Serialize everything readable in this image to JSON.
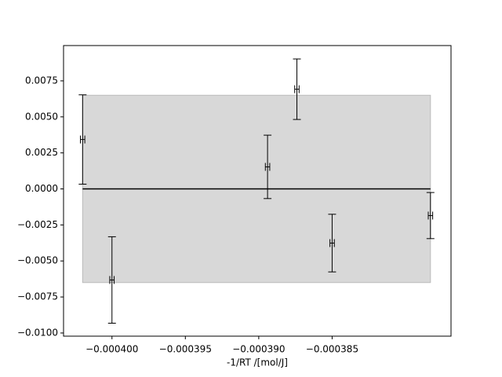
{
  "chart_data": {
    "type": "errorbar",
    "xlabel": "-1/RT /[mol/J]",
    "x": [
      -0.000402,
      -0.0004,
      -0.0003894,
      -0.0003874,
      -0.000385,
      -0.0003783
    ],
    "values": [
      0.00343,
      -0.00632,
      0.00153,
      0.00692,
      -0.00376,
      -0.00185
    ],
    "yerr": [
      0.0031,
      0.003,
      0.0022,
      0.0021,
      0.002,
      0.0016
    ],
    "xerr": [
      1.5e-07,
      1.5e-07,
      1.5e-07,
      1.5e-07,
      1.5e-07,
      1.5e-07
    ],
    "color": "#000000",
    "band": [
      -0.0065,
      0.0065
    ],
    "band_color": "#d8d8d8",
    "xlim": [
      -0.0004033,
      -0.0003769
    ],
    "ylim": [
      -0.01022,
      0.00995
    ],
    "xticks": [
      {
        "value": -0.0004,
        "label": "−0.000400"
      },
      {
        "value": -0.000395,
        "label": "−0.000395"
      },
      {
        "value": -0.00039,
        "label": "−0.000390"
      },
      {
        "value": -0.000385,
        "label": "−0.000385"
      }
    ],
    "yticks": [
      {
        "value": -0.01,
        "label": "−0.0100"
      },
      {
        "value": -0.0075,
        "label": "−0.0075"
      },
      {
        "value": -0.005,
        "label": "−0.0050"
      },
      {
        "value": -0.0025,
        "label": "−0.0025"
      },
      {
        "value": 0,
        "label": "0.0000"
      },
      {
        "value": 0.0025,
        "label": "0.0025"
      },
      {
        "value": 0.005,
        "label": "0.0050"
      },
      {
        "value": 0.0075,
        "label": "0.0075"
      }
    ]
  }
}
